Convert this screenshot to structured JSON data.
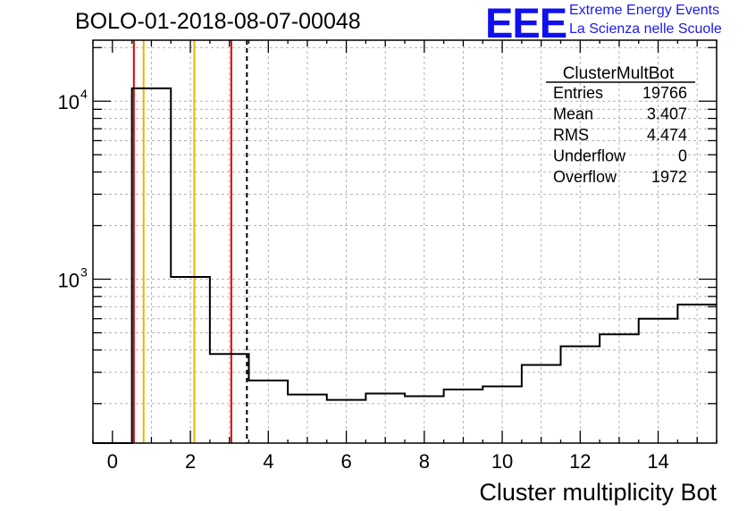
{
  "header": {
    "run_title": "BOLO-01-2018-08-07-00048",
    "logo": "EEE",
    "logo_line1": "Extreme Energy Events",
    "logo_line2": "La Scienza nelle Scuole"
  },
  "colors": {
    "logo": "#1010ee",
    "histogram": "#000000",
    "grid": "#b4b4b4",
    "red_marker": "#e00000",
    "orange_marker": "#f0b400",
    "dashed_marker": "#000000"
  },
  "stats": {
    "title": "ClusterMultBot",
    "rows": [
      {
        "label": "Entries",
        "value": "19766"
      },
      {
        "label": "Mean",
        "value": "3.407"
      },
      {
        "label": "RMS",
        "value": "4.474"
      },
      {
        "label": "Underflow",
        "value": "0"
      },
      {
        "label": "Overflow",
        "value": "1972"
      }
    ]
  },
  "chart_data": {
    "type": "histogram",
    "title": "",
    "xlabel": "Cluster multiplicity Bot",
    "ylabel": "",
    "y_scale": "log",
    "xlim": [
      -0.5,
      15.5
    ],
    "ylim": [
      120,
      22000
    ],
    "grid": true,
    "x_ticks": [
      0,
      2,
      4,
      6,
      8,
      10,
      12,
      14
    ],
    "y_tick_labels": [
      {
        "base": "10",
        "exp": "4",
        "value": 10000
      },
      {
        "base": "10",
        "exp": "3",
        "value": 1000
      }
    ],
    "bins": [
      {
        "x0": -0.5,
        "x1": 0.5,
        "value": 0
      },
      {
        "x0": 0.5,
        "x1": 1.5,
        "value": 11800
      },
      {
        "x0": 1.5,
        "x1": 2.5,
        "value": 1030
      },
      {
        "x0": 2.5,
        "x1": 3.5,
        "value": 380
      },
      {
        "x0": 3.5,
        "x1": 4.5,
        "value": 270
      },
      {
        "x0": 4.5,
        "x1": 5.5,
        "value": 225
      },
      {
        "x0": 5.5,
        "x1": 6.5,
        "value": 210
      },
      {
        "x0": 6.5,
        "x1": 7.5,
        "value": 228
      },
      {
        "x0": 7.5,
        "x1": 8.5,
        "value": 220
      },
      {
        "x0": 8.5,
        "x1": 9.5,
        "value": 240
      },
      {
        "x0": 9.5,
        "x1": 10.5,
        "value": 250
      },
      {
        "x0": 10.5,
        "x1": 11.5,
        "value": 330
      },
      {
        "x0": 11.5,
        "x1": 12.5,
        "value": 420
      },
      {
        "x0": 12.5,
        "x1": 13.5,
        "value": 490
      },
      {
        "x0": 13.5,
        "x1": 14.5,
        "value": 600
      },
      {
        "x0": 14.5,
        "x1": 15.5,
        "value": 720
      }
    ],
    "markers": [
      {
        "x": 0.55,
        "color": "red",
        "style": "solid"
      },
      {
        "x": 0.8,
        "color": "orange",
        "style": "solid"
      },
      {
        "x": 2.1,
        "color": "orange",
        "style": "solid"
      },
      {
        "x": 3.05,
        "color": "red",
        "style": "solid"
      },
      {
        "x": 3.45,
        "color": "black",
        "style": "dashed"
      }
    ]
  }
}
